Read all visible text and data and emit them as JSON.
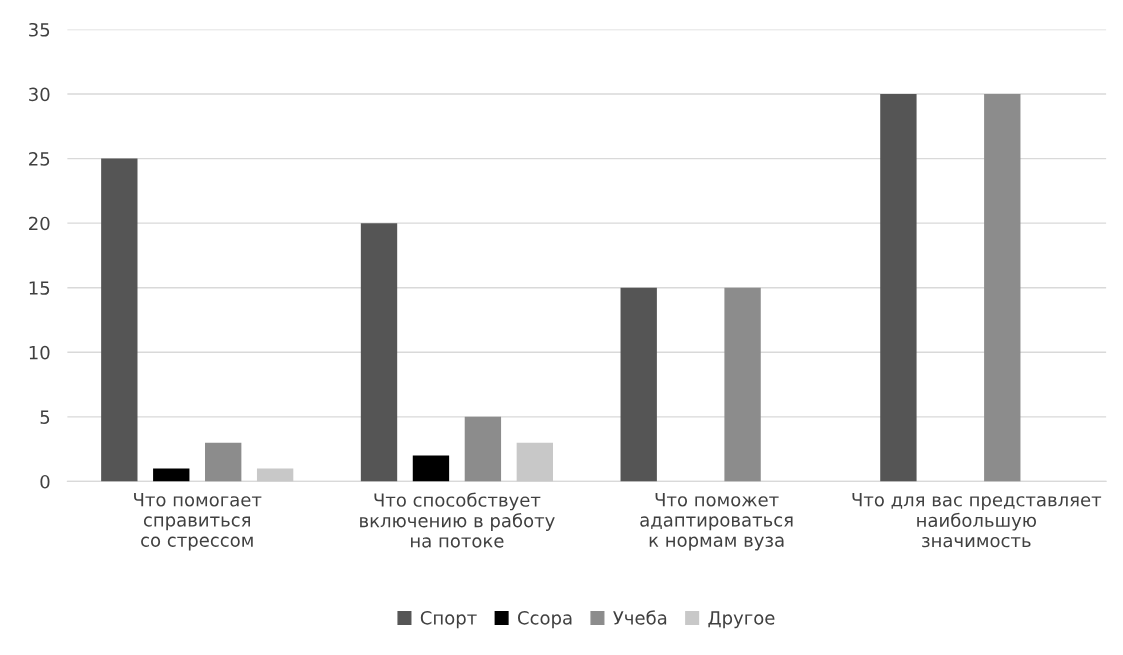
{
  "chart_data": {
    "type": "bar",
    "categories": [
      "Что помогает\nсправиться\nсо стрессом",
      "Что способствует\nвключению в работу\nна потоке",
      "Что поможет\nадаптироваться\nк нормам вуза",
      "Что для вас представляет\nнаибольшую\nзначимость"
    ],
    "series": [
      {
        "name": "Спорт",
        "color": "#555555",
        "values": [
          25,
          20,
          15,
          30
        ]
      },
      {
        "name": "Ссора",
        "color": "#000000",
        "values": [
          1,
          2,
          0,
          0
        ]
      },
      {
        "name": "Учеба",
        "color": "#8c8c8c",
        "values": [
          3,
          5,
          15,
          30
        ]
      },
      {
        "name": "Другое",
        "color": "#c8c8c8",
        "values": [
          1,
          3,
          0,
          0
        ]
      }
    ],
    "ylim": [
      0,
      35
    ],
    "yticks": [
      0,
      5,
      10,
      15,
      20,
      25,
      30,
      35
    ],
    "grid": "y",
    "legend": "bottom"
  }
}
